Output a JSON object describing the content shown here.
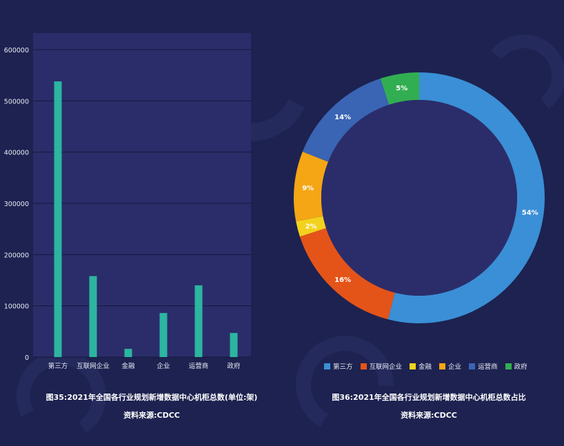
{
  "chart_data": [
    {
      "type": "bar",
      "categories": [
        "第三方",
        "互联网企业",
        "金融",
        "企业",
        "运营商",
        "政府"
      ],
      "values": [
        538000,
        158000,
        16000,
        86000,
        140000,
        47000
      ],
      "yticks": [
        "600000",
        "500000",
        "400000",
        "300000",
        "200000",
        "100000",
        "0"
      ],
      "ylim": [
        0,
        600000
      ],
      "bar_color": "#2cb5a0",
      "grid": true,
      "caption": "图35:2021年全国各行业规划新增数据中心机柜总数(单位:架)",
      "source": "资料来源:CDCC"
    },
    {
      "type": "pie",
      "donut": true,
      "labels": [
        "第三方",
        "互联网企业",
        "金融",
        "企业",
        "运营商",
        "政府"
      ],
      "values": [
        54,
        16,
        2,
        9,
        14,
        5
      ],
      "value_labels": [
        "54%",
        "16%",
        "2%",
        "9%",
        "14%",
        "5%"
      ],
      "colors": [
        "#3a8fd6",
        "#e45419",
        "#f3d21d",
        "#f4a615",
        "#3a64b4",
        "#32ae52"
      ],
      "caption": "图36:2021年全国各行业规划新增数据中心机柜总数占比",
      "source": "资料来源:CDCC"
    }
  ]
}
